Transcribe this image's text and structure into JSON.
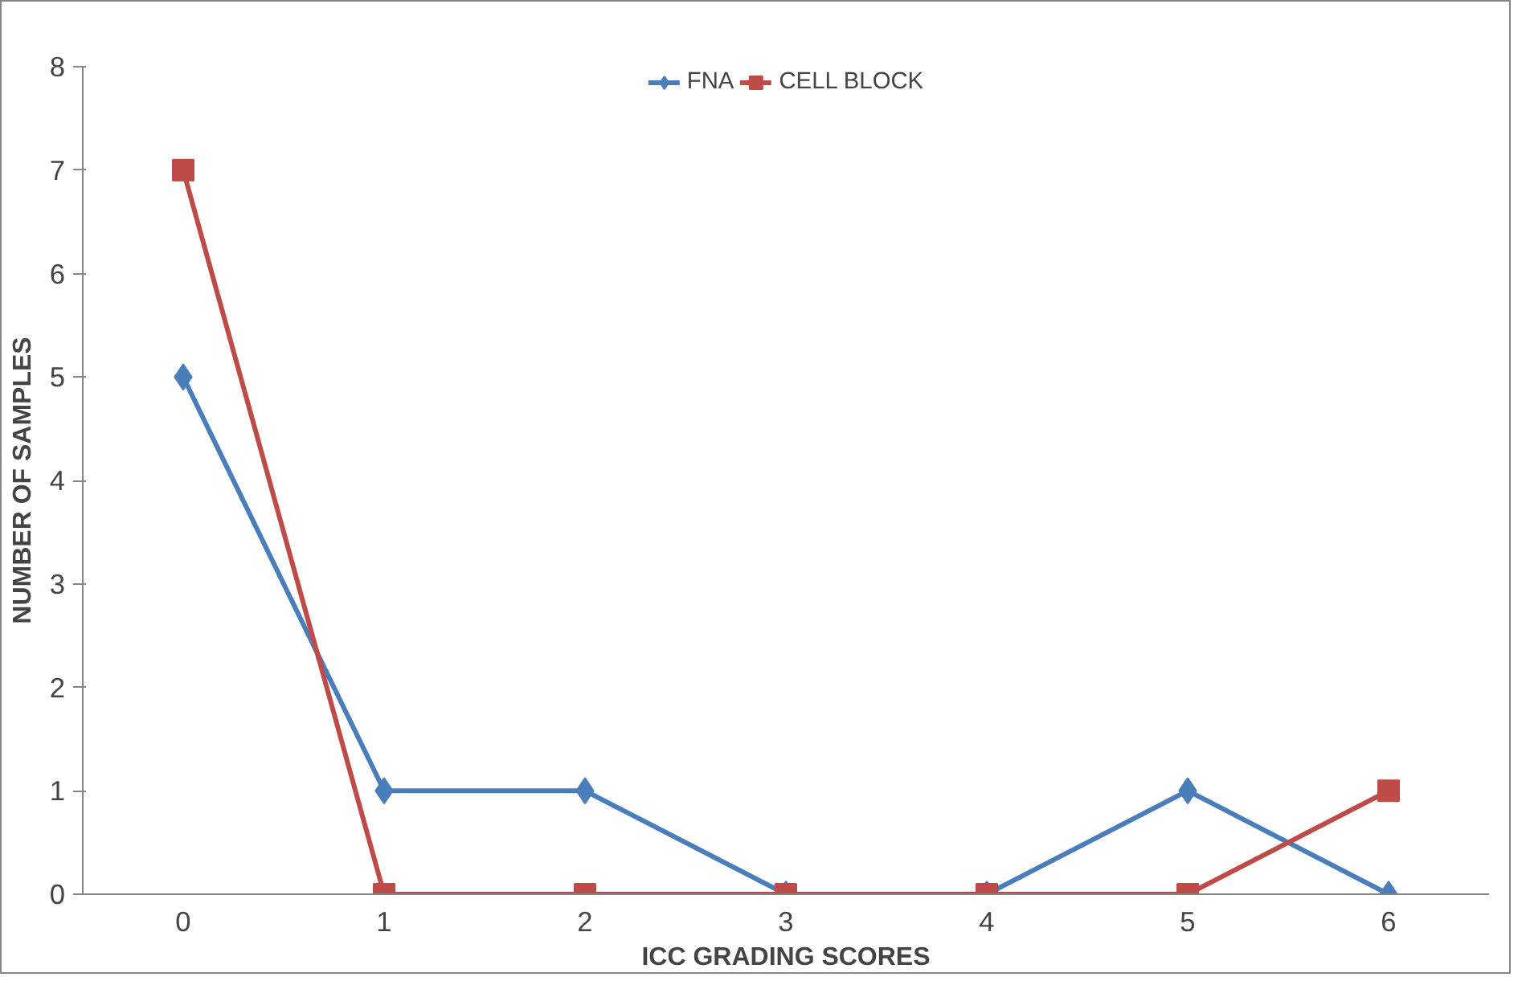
{
  "chart_data": {
    "type": "line",
    "xlabel": "ICC GRADING SCORES",
    "ylabel": "NUMBER OF SAMPLES",
    "categories": [
      "0",
      "1",
      "2",
      "3",
      "4",
      "5",
      "6"
    ],
    "ylim": [
      0,
      8
    ],
    "yticks": [
      0,
      1,
      2,
      3,
      4,
      5,
      6,
      7,
      8
    ],
    "grid": false,
    "legend": "top",
    "line_style": "solid",
    "series": [
      {
        "name": "FNA",
        "color": "#4a7ebb",
        "marker": "diamond",
        "values": [
          5,
          1,
          1,
          0,
          0,
          1,
          0
        ]
      },
      {
        "name": "CELL BLOCK",
        "color": "#be4b48",
        "marker": "square",
        "values": [
          7,
          0,
          0,
          0,
          0,
          0,
          1
        ]
      }
    ]
  }
}
